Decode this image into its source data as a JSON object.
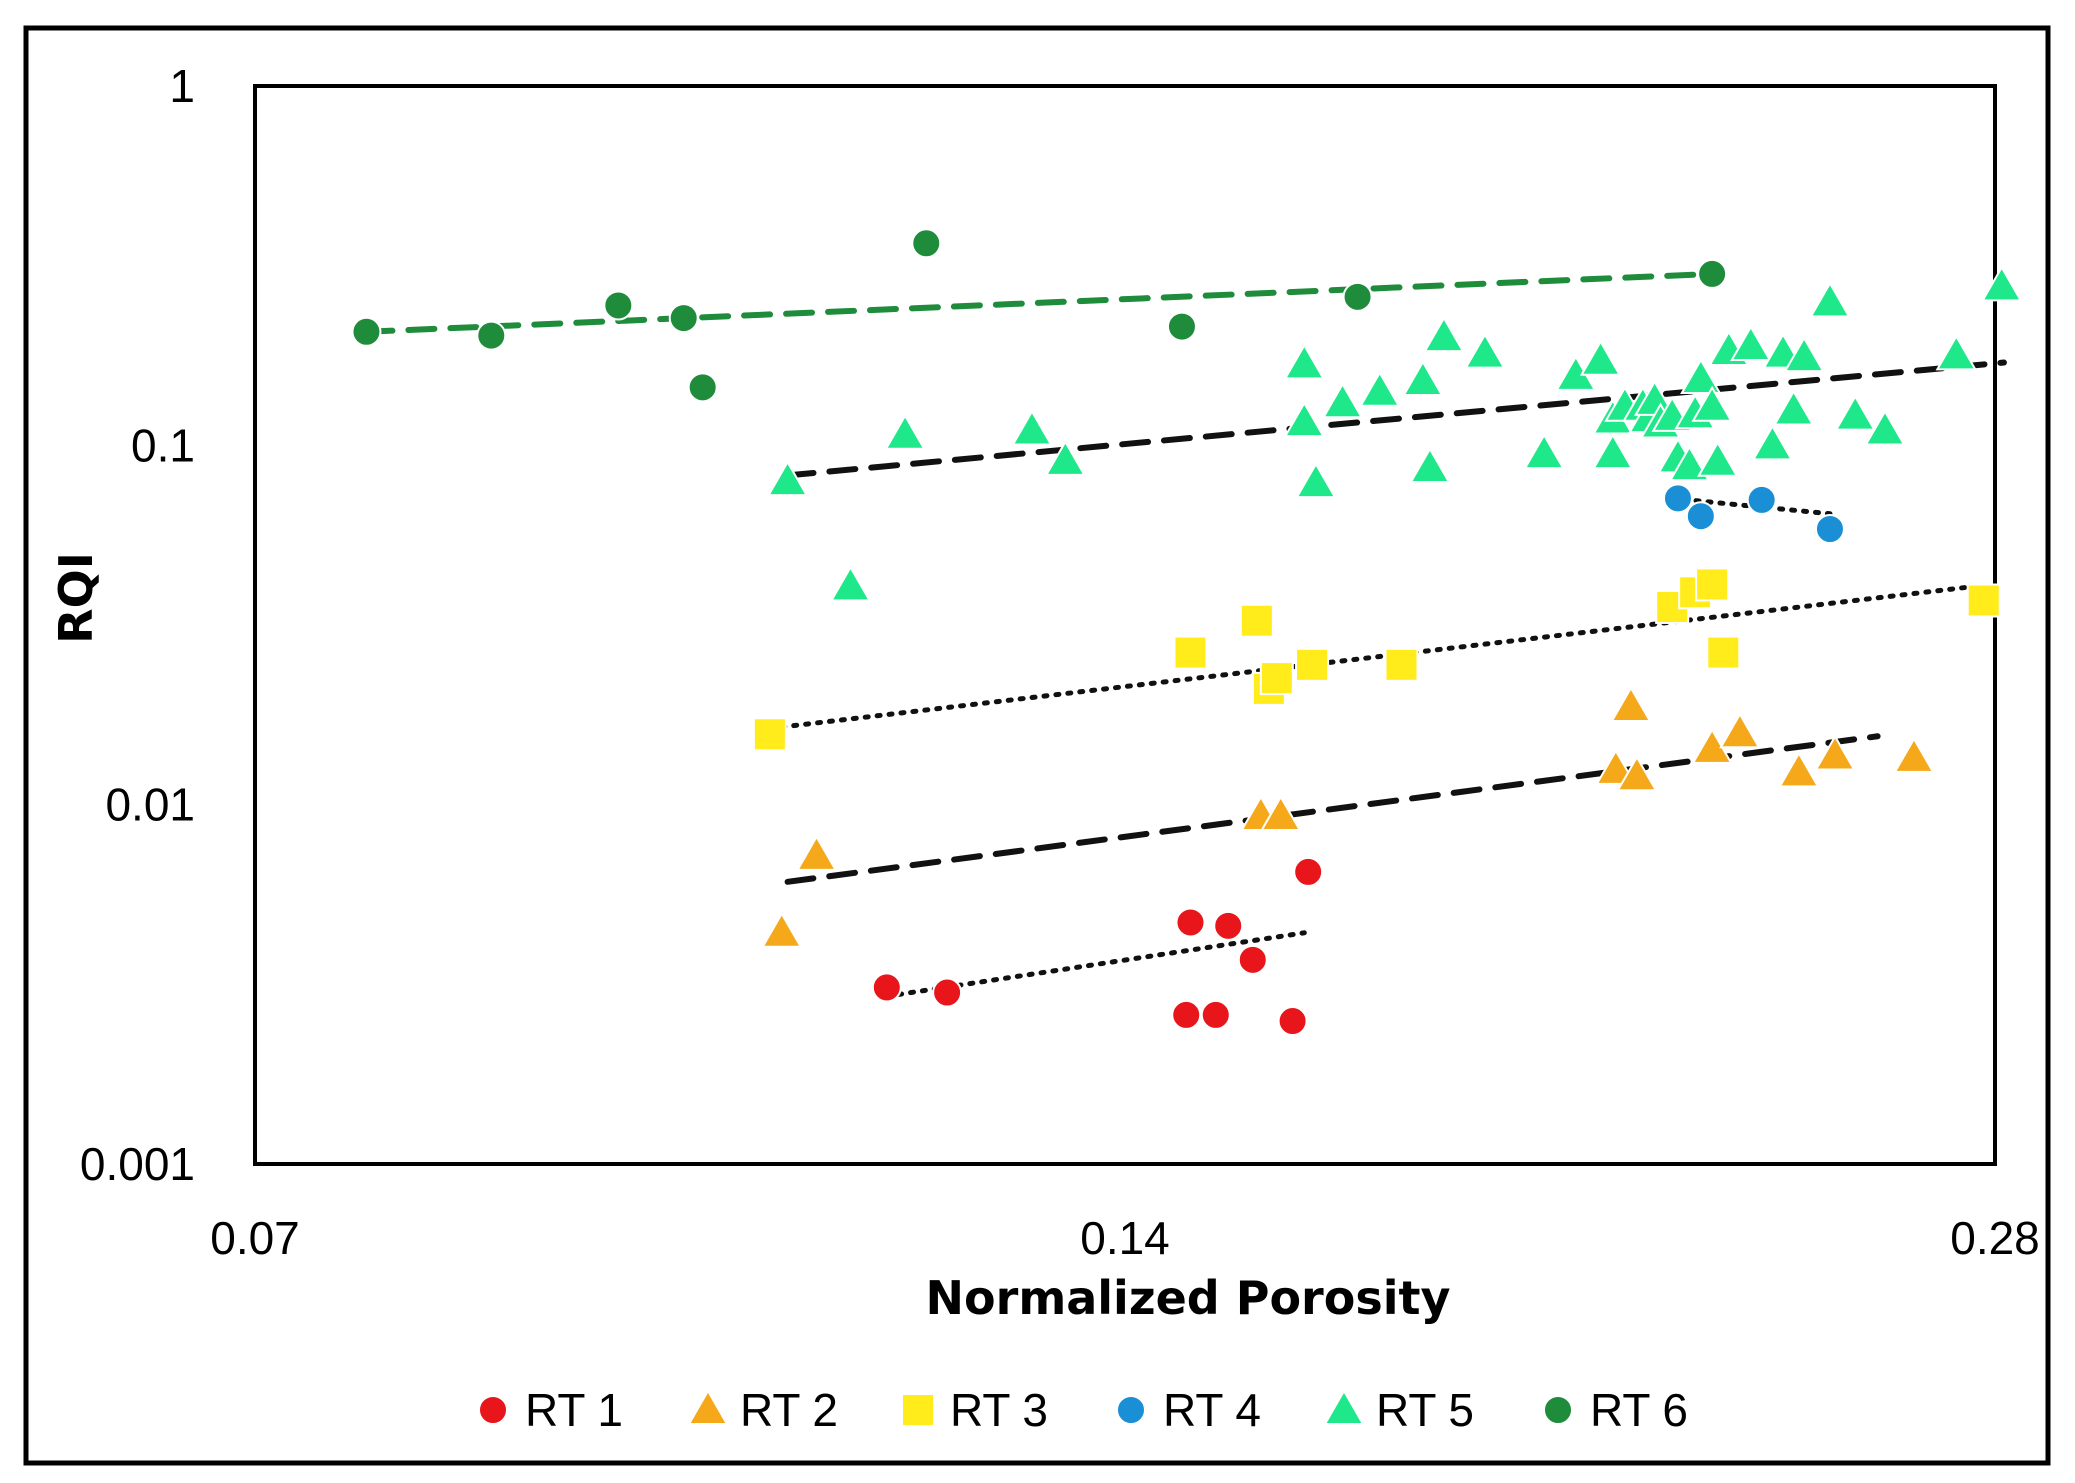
{
  "chart_data": {
    "type": "scatter",
    "title": "",
    "xlabel": "Normalized Porosity",
    "ylabel": "RQI",
    "x_scale": "log",
    "y_scale": "log",
    "xlim": [
      0.07,
      0.28
    ],
    "ylim": [
      0.001,
      1
    ],
    "x_ticks": [
      0.07,
      0.14,
      0.28
    ],
    "x_tick_labels": [
      "0.07",
      "0.14",
      "0.28"
    ],
    "y_ticks": [
      0.001,
      0.01,
      0.1,
      1
    ],
    "y_tick_labels": [
      "0.001",
      "0.01",
      "0.1",
      "1"
    ],
    "grid": false,
    "legend_position": "bottom",
    "series": [
      {
        "name": "RT 1",
        "marker": "circle",
        "color": "#e8161b",
        "trendline": {
          "style": "dotted",
          "color": "#111111",
          "points": [
            [
              0.1158,
              0.00293
            ],
            [
              0.1615,
              0.0044
            ]
          ]
        },
        "points": [
          [
            0.1158,
            0.0031
          ],
          [
            0.1215,
            0.003
          ],
          [
            0.1475,
            0.0047
          ],
          [
            0.152,
            0.0046
          ],
          [
            0.155,
            0.0037
          ],
          [
            0.162,
            0.0065
          ],
          [
            0.147,
            0.0026
          ],
          [
            0.1505,
            0.0026
          ],
          [
            0.16,
            0.0025
          ]
        ]
      },
      {
        "name": "RT 2",
        "marker": "triangle",
        "color": "#f5a91a",
        "trendline": {
          "style": "dashed",
          "color": "#111111",
          "points": [
            [
              0.107,
              0.0061
            ],
            [
              0.255,
              0.0155
            ]
          ]
        },
        "points": [
          [
            0.1065,
            0.0044
          ],
          [
            0.1095,
            0.0072
          ],
          [
            0.156,
            0.0093
          ],
          [
            0.1585,
            0.0093
          ],
          [
            0.2095,
            0.0187
          ],
          [
            0.207,
            0.0125
          ],
          [
            0.2105,
            0.012
          ],
          [
            0.2235,
            0.0143
          ],
          [
            0.2285,
            0.0158
          ],
          [
            0.2395,
            0.0123
          ],
          [
            0.2465,
            0.0137
          ],
          [
            0.2625,
            0.0135
          ]
        ]
      },
      {
        "name": "RT 3",
        "marker": "square",
        "color": "#ffec1a",
        "trendline": {
          "style": "dotted",
          "color": "#111111",
          "points": [
            [
              0.1055,
              0.0163
            ],
            [
              0.2755,
              0.0405
            ]
          ]
        },
        "points": [
          [
            0.1055,
            0.0157
          ],
          [
            0.1475,
            0.0265
          ],
          [
            0.1555,
            0.0325
          ],
          [
            0.157,
            0.021
          ],
          [
            0.158,
            0.0225
          ],
          [
            0.1625,
            0.0245
          ],
          [
            0.1745,
            0.0245
          ],
          [
            0.2165,
            0.0355
          ],
          [
            0.2205,
            0.039
          ],
          [
            0.2235,
            0.041
          ],
          [
            0.2255,
            0.0265
          ],
          [
            0.2775,
            0.037
          ]
        ]
      },
      {
        "name": "RT 4",
        "marker": "circle",
        "color": "#1b8fd6",
        "trendline": {
          "style": "dotted",
          "color": "#111111",
          "points": [
            [
              0.2165,
              0.0712
            ],
            [
              0.2455,
              0.0645
            ]
          ]
        },
        "points": [
          [
            0.2175,
            0.0712
          ],
          [
            0.2215,
            0.0635
          ],
          [
            0.2325,
            0.0705
          ],
          [
            0.2455,
            0.0585
          ]
        ]
      },
      {
        "name": "RT 5",
        "marker": "triangle",
        "color": "#1ee88a",
        "trendline": {
          "style": "dashed",
          "color": "#111111",
          "points": [
            [
              0.107,
              0.0825
            ],
            [
              0.282,
              0.17
            ]
          ]
        },
        "points": [
          [
            0.107,
            0.0795
          ],
          [
            0.1125,
            0.0405
          ],
          [
            0.1175,
            0.107
          ],
          [
            0.13,
            0.11
          ],
          [
            0.1335,
            0.0905
          ],
          [
            0.1615,
            0.168
          ],
          [
            0.1615,
            0.116
          ],
          [
            0.163,
            0.0785
          ],
          [
            0.1665,
            0.131
          ],
          [
            0.1715,
            0.141
          ],
          [
            0.1775,
            0.151
          ],
          [
            0.1785,
            0.0865
          ],
          [
            0.1805,
            0.2
          ],
          [
            0.1865,
            0.18
          ],
          [
            0.1955,
            0.0945
          ],
          [
            0.2005,
            0.156
          ],
          [
            0.2045,
            0.172
          ],
          [
            0.2065,
            0.118
          ],
          [
            0.2065,
            0.0945
          ],
          [
            0.2085,
            0.128
          ],
          [
            0.2115,
            0.128
          ],
          [
            0.2125,
            0.119
          ],
          [
            0.2135,
            0.133
          ],
          [
            0.2145,
            0.115
          ],
          [
            0.2165,
            0.12
          ],
          [
            0.2175,
            0.092
          ],
          [
            0.2195,
            0.0875
          ],
          [
            0.2205,
            0.122
          ],
          [
            0.2215,
            0.153
          ],
          [
            0.2235,
            0.128
          ],
          [
            0.2245,
            0.09
          ],
          [
            0.2265,
            0.183
          ],
          [
            0.2305,
            0.189
          ],
          [
            0.2345,
            0.1
          ],
          [
            0.2365,
            0.18
          ],
          [
            0.2385,
            0.125
          ],
          [
            0.2405,
            0.176
          ],
          [
            0.2455,
            0.25
          ],
          [
            0.2505,
            0.121
          ],
          [
            0.2565,
            0.11
          ],
          [
            0.2715,
            0.178
          ],
          [
            0.2815,
            0.277
          ]
        ]
      },
      {
        "name": "RT 6",
        "marker": "circle",
        "color": "#1e8c3a",
        "trendline": {
          "style": "dashed",
          "color": "#1e8c3a",
          "points": [
            [
              0.0765,
              0.207
            ],
            [
              0.2235,
              0.3
            ]
          ]
        },
        "points": [
          [
            0.0765,
            0.207
          ],
          [
            0.0845,
            0.202
          ],
          [
            0.0935,
            0.245
          ],
          [
            0.0985,
            0.226
          ],
          [
            0.1,
            0.145
          ],
          [
            0.1195,
            0.365
          ],
          [
            0.1465,
            0.214
          ],
          [
            0.1685,
            0.259
          ],
          [
            0.2235,
            0.3
          ]
        ]
      }
    ]
  }
}
